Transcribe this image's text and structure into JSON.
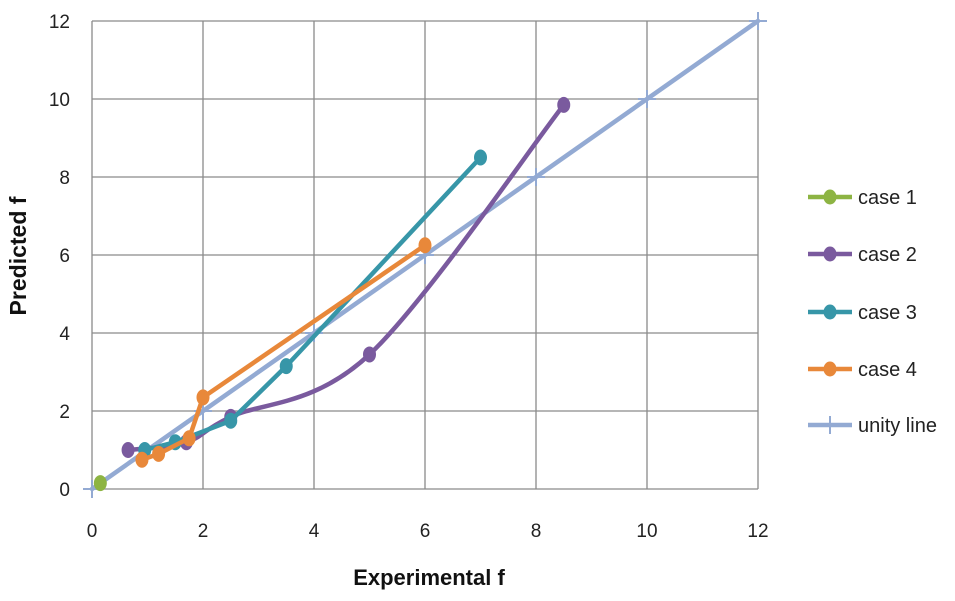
{
  "chart_data": {
    "type": "line",
    "title": "",
    "xlabel": "Experimental f",
    "ylabel": "Predicted  f",
    "xlim": [
      0,
      12
    ],
    "ylim": [
      0,
      12
    ],
    "xticks": [
      0,
      2,
      4,
      6,
      8,
      10,
      12
    ],
    "yticks": [
      0,
      2,
      4,
      6,
      8,
      10,
      12
    ],
    "grid": true,
    "legend_position": "right",
    "series": [
      {
        "name": "case 1",
        "color": "#8DB443",
        "marker": "circle",
        "smooth": false,
        "points": [
          [
            0.15,
            0.15
          ]
        ]
      },
      {
        "name": "case 2",
        "color": "#7A5A9E",
        "marker": "circle",
        "smooth": true,
        "points": [
          [
            0.65,
            1.0
          ],
          [
            1.7,
            1.2
          ],
          [
            2.5,
            1.85
          ],
          [
            5.0,
            3.45
          ],
          [
            8.5,
            9.85
          ]
        ]
      },
      {
        "name": "case 3",
        "color": "#3796A8",
        "marker": "circle",
        "smooth": false,
        "points": [
          [
            0.95,
            1.0
          ],
          [
            1.5,
            1.2
          ],
          [
            2.5,
            1.75
          ],
          [
            3.5,
            3.15
          ],
          [
            7.0,
            8.5
          ]
        ]
      },
      {
        "name": "case 4",
        "color": "#E8883A",
        "marker": "circle",
        "smooth": false,
        "points": [
          [
            0.9,
            0.75
          ],
          [
            1.2,
            0.9
          ],
          [
            1.75,
            1.3
          ],
          [
            2.0,
            2.35
          ],
          [
            6.0,
            6.25
          ]
        ]
      },
      {
        "name": "unity line",
        "color": "#93AAD3",
        "marker": "plus",
        "smooth": false,
        "points": [
          [
            0,
            0
          ],
          [
            2,
            2
          ],
          [
            4,
            4
          ],
          [
            6,
            6
          ],
          [
            8,
            8
          ],
          [
            10,
            10
          ],
          [
            12,
            12
          ]
        ]
      }
    ]
  }
}
